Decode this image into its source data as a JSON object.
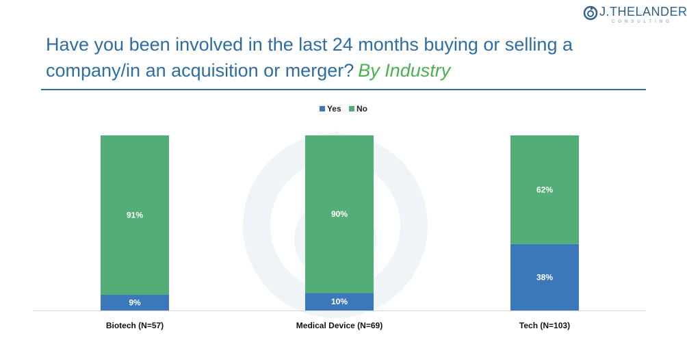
{
  "logo": {
    "name": "J.THELANDER",
    "sub": "CONSULTING"
  },
  "title": {
    "main": "Have you been involved in the last 24 months buying or selling a company/in an acquisition or merger?",
    "accent": "By Industry"
  },
  "legend": [
    {
      "label": "Yes",
      "color": "#3c78b9"
    },
    {
      "label": "No",
      "color": "#52ae76"
    }
  ],
  "chart_data": {
    "type": "bar",
    "stacked": true,
    "categories": [
      "Biotech (N=57)",
      "Medical Device (N=69)",
      "Tech (N=103)"
    ],
    "series": [
      {
        "name": "Yes",
        "values": [
          9,
          10,
          38
        ],
        "color": "#3c78b9"
      },
      {
        "name": "No",
        "values": [
          91,
          90,
          62
        ],
        "color": "#52ae76"
      }
    ],
    "ylim": [
      0,
      100
    ],
    "value_suffix": "%",
    "legend_position": "top-center",
    "grid": false
  }
}
